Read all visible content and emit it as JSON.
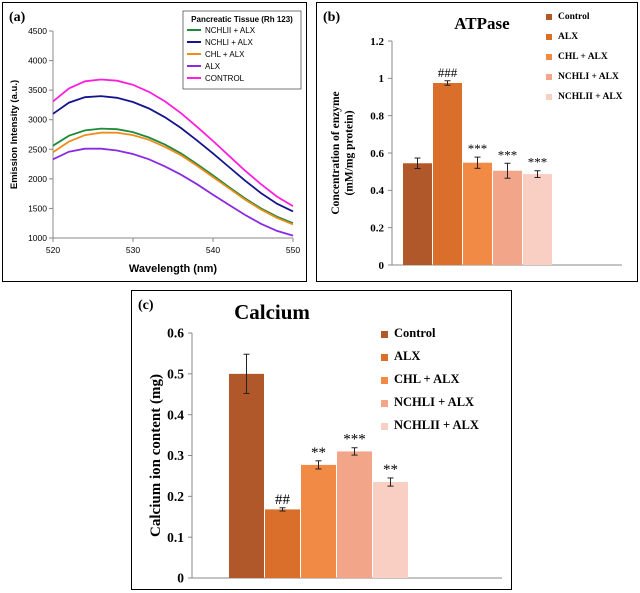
{
  "chart_data": [
    {
      "panel_label": "(a)",
      "type": "line",
      "title": "",
      "xlabel": "Wavelength (nm)",
      "ylabel": "Emission Intensity (a.u.)",
      "xlim": [
        520,
        550
      ],
      "ylim": [
        1000,
        4500
      ],
      "xticks": [
        "520",
        "530",
        "540",
        "550"
      ],
      "yticks": [
        "1000",
        "1500",
        "2000",
        "2500",
        "3000",
        "3500",
        "4000",
        "4500"
      ],
      "legend_title": "Pancreatic Tissue (Rh 123)",
      "legend_position": "top-right",
      "x": [
        520,
        522,
        524,
        526,
        528,
        530,
        532,
        534,
        536,
        538,
        540,
        542,
        544,
        546,
        548,
        550
      ],
      "series": [
        {
          "name": "NCHLII + ALX",
          "color": "#1e8a3c",
          "values": [
            2560,
            2730,
            2820,
            2850,
            2840,
            2790,
            2700,
            2580,
            2430,
            2250,
            2060,
            1860,
            1670,
            1500,
            1360,
            1250
          ]
        },
        {
          "name": "NCHLI + ALX",
          "color": "#14148c",
          "values": [
            3100,
            3290,
            3380,
            3400,
            3370,
            3300,
            3190,
            3040,
            2860,
            2650,
            2430,
            2200,
            1970,
            1760,
            1580,
            1450
          ]
        },
        {
          "name": "CHL + ALX",
          "color": "#f08c1e",
          "values": [
            2450,
            2630,
            2740,
            2780,
            2780,
            2740,
            2660,
            2540,
            2400,
            2220,
            2030,
            1840,
            1650,
            1480,
            1340,
            1230
          ]
        },
        {
          "name": "ALX",
          "color": "#8a2be2",
          "values": [
            2330,
            2460,
            2510,
            2510,
            2480,
            2420,
            2330,
            2210,
            2070,
            1910,
            1730,
            1560,
            1390,
            1240,
            1120,
            1040
          ]
        },
        {
          "name": "CONTROL",
          "color": "#ff1edc",
          "values": [
            3310,
            3530,
            3650,
            3680,
            3660,
            3590,
            3470,
            3310,
            3110,
            2880,
            2640,
            2390,
            2140,
            1910,
            1700,
            1540
          ]
        }
      ]
    },
    {
      "panel_label": "(b)",
      "type": "bar",
      "title": "ATPase",
      "xlabel": "",
      "ylabel_line1": "Concentration of enzyme",
      "ylabel_line2": "(mM/mg protein)",
      "ylim": [
        0,
        1.2
      ],
      "yticks": [
        "0",
        "0.2",
        "0.4",
        "0.6",
        "0.8",
        "1",
        "1.2"
      ],
      "legend_position": "right",
      "categories": [
        "Control",
        "ALX",
        "CHL + ALX",
        "NCHLI + ALX",
        "NCHLII + ALX"
      ],
      "colors": [
        "#b0582a",
        "#d96f2b",
        "#f08a45",
        "#f2a588",
        "#f8cfc2"
      ],
      "values": [
        0.545,
        0.975,
        0.548,
        0.505,
        0.487
      ],
      "errors": [
        0.028,
        0.012,
        0.03,
        0.04,
        0.018
      ],
      "annotations": [
        "",
        "###",
        "***",
        "***",
        "***"
      ]
    },
    {
      "panel_label": "(c)",
      "type": "bar",
      "title": "Calcium",
      "xlabel": "",
      "ylabel": "Calcium ion content (mg)",
      "ylim": [
        0,
        0.6
      ],
      "yticks": [
        "0",
        "0.1",
        "0.2",
        "0.3",
        "0.4",
        "0.5",
        "0.6"
      ],
      "legend_position": "right",
      "categories": [
        "Control",
        "ALX",
        "CHL + ALX",
        "NCHLI + ALX",
        "NCHLII + ALX"
      ],
      "colors": [
        "#b0582a",
        "#d96f2b",
        "#f08a45",
        "#f2a588",
        "#f8cfc2"
      ],
      "values": [
        0.5,
        0.168,
        0.277,
        0.31,
        0.235
      ],
      "errors": [
        0.048,
        0.004,
        0.01,
        0.009,
        0.01
      ],
      "annotations": [
        "",
        "##",
        "**",
        "***",
        "**"
      ]
    }
  ]
}
